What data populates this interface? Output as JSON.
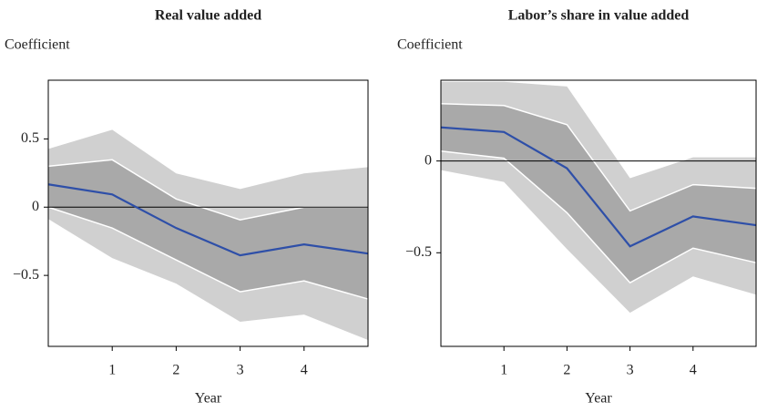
{
  "chart_data": [
    {
      "type": "line",
      "title": "Real value added",
      "ylabel": "Coefficient",
      "xlabel": "Year",
      "x": [
        0,
        1,
        2,
        3,
        4,
        5
      ],
      "xlim": [
        0,
        5
      ],
      "xticks": [
        1,
        2,
        3,
        4
      ],
      "ylim": [
        -1.02,
        0.93
      ],
      "yticks": [
        {
          "value": -0.5,
          "label": "−0.5"
        },
        0,
        0.5
      ],
      "reference_line": 0,
      "bands": [
        {
          "color": "#d0d0d0",
          "upper": [
            0.427,
            0.567,
            0.247,
            0.133,
            0.247,
            0.293
          ],
          "lower": [
            -0.087,
            -0.373,
            -0.56,
            -0.84,
            -0.787,
            -0.973
          ]
        },
        {
          "color": "#a9a9a9",
          "edge_color": "#ffffff",
          "upper": [
            0.3,
            0.347,
            0.06,
            -0.093,
            0,
            0
          ],
          "lower": [
            0,
            -0.153,
            -0.387,
            -0.62,
            -0.54,
            -0.673
          ]
        }
      ],
      "series": [
        {
          "color": "#2e4fa8",
          "values": [
            0.167,
            0.093,
            -0.153,
            -0.353,
            -0.273,
            -0.34
          ]
        }
      ]
    },
    {
      "type": "line",
      "title": "Labor’s share in value added",
      "ylabel": "Coefficient",
      "xlabel": "Year",
      "x": [
        0,
        1,
        2,
        3,
        4,
        5
      ],
      "xlim": [
        0,
        5
      ],
      "xticks": [
        1,
        2,
        3,
        4
      ],
      "ylim": [
        -1.01,
        0.44
      ],
      "yticks": [
        {
          "value": -0.5,
          "label": "−0.5"
        },
        0
      ],
      "reference_line": 0,
      "bands": [
        {
          "color": "#d0d0d0",
          "upper": [
            0.431,
            0.431,
            0.406,
            -0.094,
            0.02,
            0.02
          ],
          "lower": [
            -0.05,
            -0.114,
            -0.48,
            -0.827,
            -0.629,
            -0.728
          ]
        },
        {
          "color": "#a9a9a9",
          "edge_color": "#ffffff",
          "upper": [
            0.312,
            0.302,
            0.198,
            -0.272,
            -0.129,
            -0.149
          ],
          "lower": [
            0.054,
            0.015,
            -0.282,
            -0.663,
            -0.475,
            -0.554
          ]
        }
      ],
      "series": [
        {
          "color": "#2e4fa8",
          "values": [
            0.183,
            0.158,
            -0.04,
            -0.465,
            -0.302,
            -0.35
          ]
        }
      ]
    }
  ]
}
